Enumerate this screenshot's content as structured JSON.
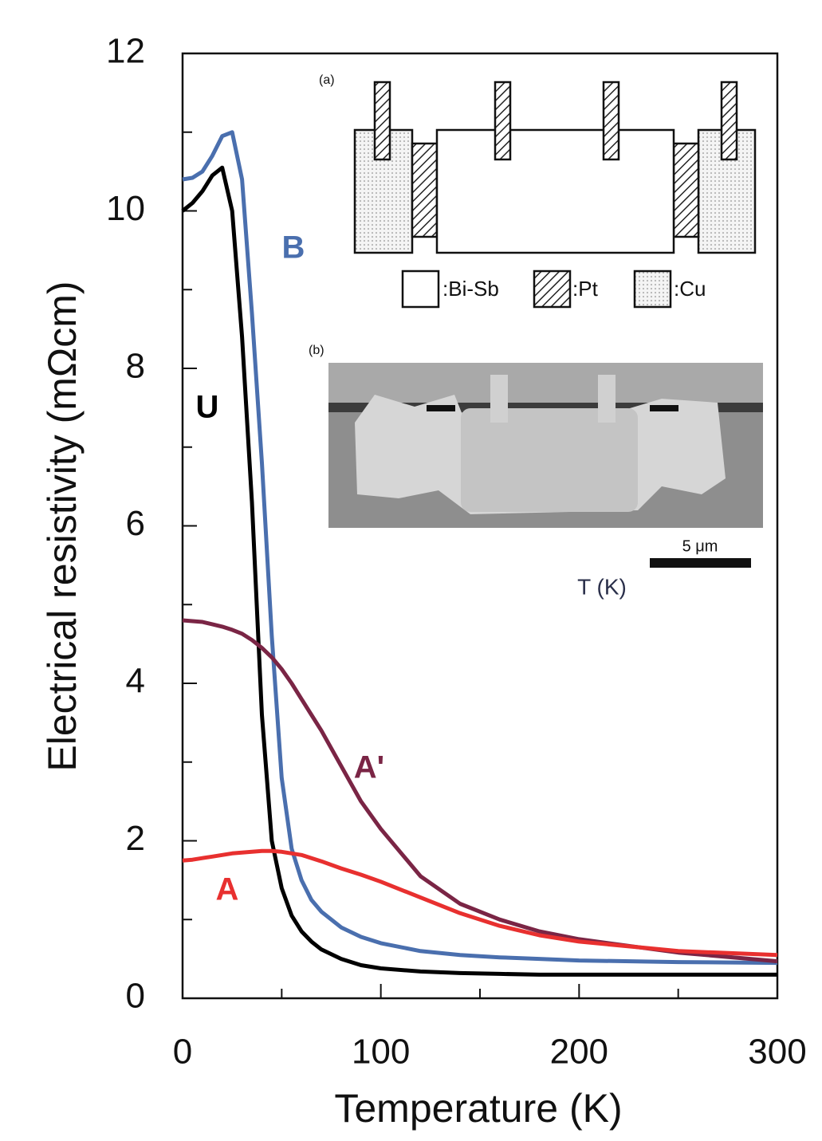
{
  "chart_data": {
    "type": "line",
    "xlabel": "Temperature (K)",
    "ylabel": "Electrical resistivity (mΩcm)",
    "x": [
      0,
      5,
      10,
      15,
      20,
      25,
      30,
      35,
      40,
      45,
      50,
      55,
      60,
      65,
      70,
      80,
      90,
      100,
      120,
      140,
      160,
      180,
      200,
      250,
      300
    ],
    "series": [
      {
        "name": "U",
        "color": "#000000",
        "values": [
          10.0,
          10.1,
          10.25,
          10.45,
          10.55,
          10.0,
          8.4,
          6.3,
          3.6,
          2.0,
          1.4,
          1.05,
          0.85,
          0.72,
          0.62,
          0.5,
          0.42,
          0.38,
          0.34,
          0.32,
          0.31,
          0.3,
          0.3,
          0.3,
          0.3
        ]
      },
      {
        "name": "B",
        "color": "#4a6fae",
        "values": [
          10.4,
          10.42,
          10.5,
          10.7,
          10.95,
          11.0,
          10.4,
          8.7,
          6.8,
          4.6,
          2.8,
          1.9,
          1.5,
          1.25,
          1.1,
          0.9,
          0.78,
          0.7,
          0.6,
          0.55,
          0.52,
          0.5,
          0.48,
          0.46,
          0.45
        ]
      },
      {
        "name": "A'",
        "color": "#7a2545",
        "values": [
          4.8,
          4.79,
          4.78,
          4.75,
          4.72,
          4.68,
          4.63,
          4.55,
          4.45,
          4.33,
          4.18,
          4.0,
          3.8,
          3.6,
          3.4,
          2.95,
          2.5,
          2.15,
          1.55,
          1.2,
          1.0,
          0.85,
          0.75,
          0.58,
          0.47
        ]
      },
      {
        "name": "A",
        "color": "#e8302f",
        "values": [
          1.75,
          1.76,
          1.78,
          1.8,
          1.82,
          1.84,
          1.85,
          1.86,
          1.87,
          1.87,
          1.86,
          1.84,
          1.82,
          1.78,
          1.74,
          1.65,
          1.57,
          1.48,
          1.28,
          1.08,
          0.92,
          0.8,
          0.72,
          0.6,
          0.55
        ]
      }
    ],
    "xlim": [
      0,
      300
    ],
    "xticks": [
      0,
      100,
      200,
      300
    ],
    "xminorticks": [
      50,
      150,
      250
    ],
    "ylim": [
      0,
      12
    ],
    "yticks": [
      0,
      2,
      4,
      6,
      8,
      10,
      12
    ],
    "yminorticks": [
      1,
      3,
      5,
      7,
      9,
      11
    ],
    "annotations": [
      "(a)",
      ":Bi-Sb",
      ":Pt",
      ":Cu",
      "(b)",
      "5 μm",
      "T (K)"
    ]
  }
}
